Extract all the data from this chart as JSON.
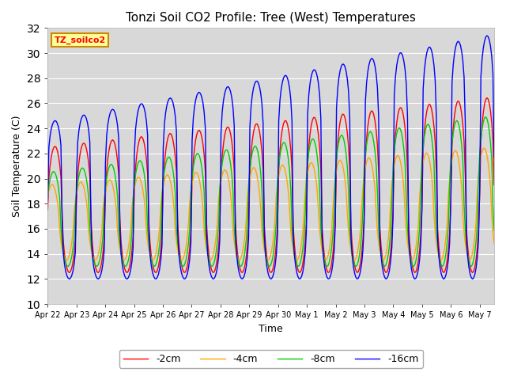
{
  "title": "Tonzi Soil CO2 Profile: Tree (West) Temperatures",
  "xlabel": "Time",
  "ylabel": "Soil Temperature (C)",
  "ylim": [
    10,
    32
  ],
  "series_labels": [
    "-2cm",
    "-4cm",
    "-8cm",
    "-16cm"
  ],
  "series_colors": [
    "#ff0000",
    "#ffa500",
    "#00cc00",
    "#0000ff"
  ],
  "legend_title": "TZ_soilco2",
  "xtick_labels": [
    "Apr 22",
    "Apr 23",
    "Apr 24",
    "Apr 25",
    "Apr 26",
    "Apr 27",
    "Apr 28",
    "Apr 29",
    "Apr 30",
    "May 1",
    "May 2",
    "May 3",
    "May 4",
    "May 5",
    "May 6",
    "May 7"
  ],
  "bg_color": "#d8d8d8",
  "plot_bg_color": "#d8d8d8"
}
